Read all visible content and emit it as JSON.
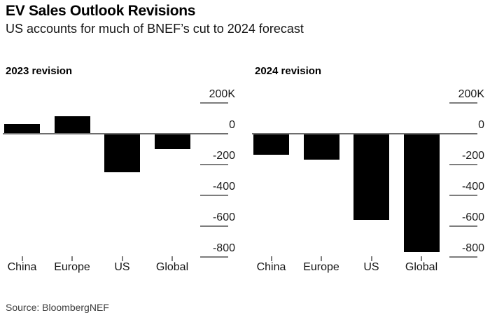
{
  "header": {
    "title": "EV Sales Outlook Revisions",
    "subtitle": "US accounts for much of BNEF’s cut to 2024 forecast"
  },
  "source": "Source: BloombergNEF",
  "colors": {
    "bar": "#000000",
    "axis_line": "#6e6e6e",
    "tick_dash": "#7d7d7d",
    "tick_label_text": "#1a1a1a",
    "title_text": "#000000",
    "source_text": "#3d3d3d",
    "background": "#ffffff"
  },
  "chart_data": [
    {
      "type": "bar",
      "title": "2023 revision",
      "categories": [
        "China",
        "Europe",
        "US",
        "Global"
      ],
      "values": [
        65,
        115,
        -250,
        -100
      ],
      "unit": "K (thousand vehicles)",
      "ylim": [
        -880,
        290
      ],
      "yticks": [
        {
          "value": 200,
          "label": "200K"
        },
        {
          "value": 0,
          "label": "0"
        },
        {
          "value": -200,
          "label": "-200"
        },
        {
          "value": -400,
          "label": "-400"
        },
        {
          "value": -600,
          "label": "-600"
        },
        {
          "value": -800,
          "label": "-800"
        }
      ],
      "legend": "none",
      "grid": "right-side tick stubs only, zero baseline across plot"
    },
    {
      "type": "bar",
      "title": "2024 revision",
      "categories": [
        "China",
        "Europe",
        "US",
        "Global"
      ],
      "values": [
        -135,
        -170,
        -560,
        -770
      ],
      "unit": "K (thousand vehicles)",
      "ylim": [
        -880,
        290
      ],
      "yticks": [
        {
          "value": 200,
          "label": "200K"
        },
        {
          "value": 0,
          "label": "0"
        },
        {
          "value": -200,
          "label": "-200"
        },
        {
          "value": -400,
          "label": "-400"
        },
        {
          "value": -600,
          "label": "-600"
        },
        {
          "value": -800,
          "label": "-800"
        }
      ],
      "legend": "none",
      "grid": "right-side tick stubs only, zero baseline across plot"
    }
  ]
}
